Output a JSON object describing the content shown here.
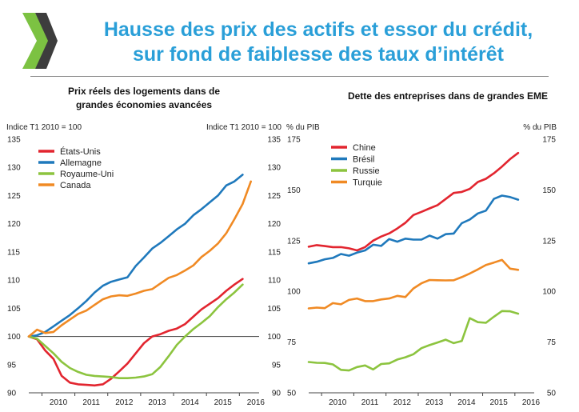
{
  "header": {
    "title_line1": "Hausse des prix des actifs et essor du crédit,",
    "title_line2": "sur fond de faiblesse des taux d’intérêt"
  },
  "colors": {
    "title": "#2a9fd8",
    "logo": "#7cc242",
    "red": "#e2252f",
    "blue": "#1f79bc",
    "green": "#8cc43f",
    "orange": "#f08a24"
  },
  "chart_data": [
    {
      "type": "line",
      "title_line1": "Prix réels des logements dans de",
      "title_line2": "grandes économies avancées",
      "ylabel_left": "Indice T1 2010 = 100",
      "ylabel_right": "Indice T1 2010 = 100",
      "ylim": [
        90,
        135
      ],
      "yticks": [
        90,
        95,
        100,
        105,
        110,
        115,
        120,
        125,
        130,
        135
      ],
      "xlim": [
        2009.6,
        2016.6
      ],
      "xticks": [
        "2010",
        "2011",
        "2012",
        "2013",
        "2014",
        "2015",
        "2016"
      ],
      "reference_line": 100,
      "grid": false,
      "legend_position": "top-left",
      "series": [
        {
          "name": "États-Unis",
          "color": "#e2252f",
          "x": [
            2009.6,
            2009.85,
            2010.1,
            2010.35,
            2010.6,
            2010.85,
            2011.1,
            2011.35,
            2011.6,
            2011.85,
            2012.1,
            2012.35,
            2012.6,
            2012.85,
            2013.1,
            2013.35,
            2013.6,
            2013.85,
            2014.1,
            2014.35,
            2014.6,
            2014.85,
            2015.1,
            2015.35,
            2015.6,
            2015.85,
            2016.1
          ],
          "y": [
            100,
            99.5,
            97.5,
            96,
            93,
            91.8,
            91.5,
            91.4,
            91.3,
            91.5,
            92.5,
            93.8,
            95.2,
            97,
            98.8,
            100,
            100.4,
            101,
            101.4,
            102.2,
            103.5,
            104.8,
            105.8,
            106.8,
            108.1,
            109.2,
            110.2
          ]
        },
        {
          "name": "Allemagne",
          "color": "#1f79bc",
          "x": [
            2009.6,
            2009.85,
            2010.1,
            2010.35,
            2010.6,
            2010.85,
            2011.1,
            2011.35,
            2011.6,
            2011.85,
            2012.1,
            2012.35,
            2012.6,
            2012.85,
            2013.1,
            2013.35,
            2013.6,
            2013.85,
            2014.1,
            2014.35,
            2014.6,
            2014.85,
            2015.1,
            2015.35,
            2015.6,
            2015.85,
            2016.1
          ],
          "y": [
            100,
            100.2,
            100.8,
            101.8,
            102.8,
            103.8,
            105,
            106.3,
            107.8,
            109,
            109.7,
            110.1,
            110.5,
            112.5,
            114,
            115.6,
            116.6,
            117.8,
            119,
            120,
            121.5,
            122.6,
            123.8,
            125,
            126.8,
            127.5,
            128.7
          ]
        },
        {
          "name": "Royaume-Uni",
          "color": "#8cc43f",
          "x": [
            2009.6,
            2009.85,
            2010.1,
            2010.35,
            2010.6,
            2010.85,
            2011.1,
            2011.35,
            2011.6,
            2011.85,
            2012.1,
            2012.35,
            2012.6,
            2012.85,
            2013.1,
            2013.35,
            2013.6,
            2013.85,
            2014.1,
            2014.35,
            2014.6,
            2014.85,
            2015.1,
            2015.35,
            2015.6,
            2015.85,
            2016.1
          ],
          "y": [
            100,
            99.6,
            98.3,
            97,
            95.5,
            94.4,
            93.7,
            93.2,
            93,
            92.9,
            92.8,
            92.6,
            92.6,
            92.7,
            92.9,
            93.3,
            94.6,
            96.5,
            98.5,
            100,
            101.3,
            102.4,
            103.6,
            105.2,
            106.6,
            107.8,
            109.2
          ]
        },
        {
          "name": "Canada",
          "color": "#f08a24",
          "x": [
            2009.6,
            2009.85,
            2010.1,
            2010.35,
            2010.6,
            2010.85,
            2011.1,
            2011.35,
            2011.6,
            2011.85,
            2012.1,
            2012.35,
            2012.6,
            2012.85,
            2013.1,
            2013.35,
            2013.6,
            2013.85,
            2014.1,
            2014.35,
            2014.6,
            2014.85,
            2015.1,
            2015.35,
            2015.6,
            2015.85,
            2016.1,
            2016.35
          ],
          "y": [
            100,
            101.2,
            100.6,
            100.8,
            102,
            103,
            104,
            104.6,
            105.6,
            106.6,
            107.1,
            107.3,
            107.2,
            107.6,
            108.1,
            108.4,
            109.4,
            110.4,
            110.9,
            111.7,
            112.6,
            114.1,
            115.2,
            116.5,
            118.3,
            120.8,
            123.5,
            127.5
          ]
        }
      ]
    },
    {
      "type": "line",
      "title": "Dette des entreprises dans de grandes EME",
      "ylabel_left": "% du PIB",
      "ylabel_right": "% du PIB",
      "ylim": [
        50,
        175
      ],
      "yticks": [
        50,
        75,
        100,
        125,
        150,
        175
      ],
      "xlim": [
        2009.6,
        2016.6
      ],
      "xticks": [
        "2010",
        "2011",
        "2012",
        "2013",
        "2014",
        "2015",
        "2016"
      ],
      "grid": false,
      "legend_position": "top-left",
      "series": [
        {
          "name": "Chine",
          "color": "#e2252f",
          "x": [
            2009.6,
            2009.85,
            2010.1,
            2010.35,
            2010.6,
            2010.85,
            2011.1,
            2011.35,
            2011.6,
            2011.85,
            2012.1,
            2012.35,
            2012.6,
            2012.85,
            2013.1,
            2013.35,
            2013.6,
            2013.85,
            2014.1,
            2014.35,
            2014.6,
            2014.85,
            2015.1,
            2015.35,
            2015.6,
            2015.85,
            2016.1
          ],
          "y": [
            122,
            122.8,
            122.3,
            121.8,
            121.8,
            121.2,
            120.2,
            121.8,
            125,
            127,
            128.6,
            131,
            133.8,
            137.6,
            139.2,
            140.9,
            142.5,
            145.5,
            148.5,
            149,
            150.5,
            153.9,
            155.5,
            158.2,
            161.5,
            165.2,
            168.2
          ]
        },
        {
          "name": "Brésil",
          "color": "#1f79bc",
          "x": [
            2009.6,
            2009.85,
            2010.1,
            2010.35,
            2010.6,
            2010.85,
            2011.1,
            2011.35,
            2011.6,
            2011.85,
            2012.1,
            2012.35,
            2012.6,
            2012.85,
            2013.1,
            2013.35,
            2013.6,
            2013.85,
            2014.1,
            2014.35,
            2014.6,
            2014.85,
            2015.1,
            2015.35,
            2015.6,
            2015.85,
            2016.1
          ],
          "y": [
            113.8,
            114.6,
            115.8,
            116.5,
            118.4,
            117.6,
            119.1,
            120.2,
            123,
            122.4,
            125.8,
            124.5,
            126,
            125.5,
            125.5,
            127.5,
            126,
            128.2,
            128.5,
            133.6,
            135.4,
            138.4,
            139.8,
            145.6,
            147.2,
            146.5,
            145.2
          ]
        },
        {
          "name": "Russie",
          "color": "#8cc43f",
          "x": [
            2009.6,
            2009.85,
            2010.1,
            2010.35,
            2010.6,
            2010.85,
            2011.1,
            2011.35,
            2011.6,
            2011.85,
            2012.1,
            2012.35,
            2012.6,
            2012.85,
            2013.1,
            2013.35,
            2013.6,
            2013.85,
            2014.1,
            2014.35,
            2014.6,
            2014.85,
            2015.1,
            2015.35,
            2015.6,
            2015.85,
            2016.1
          ],
          "y": [
            65.2,
            64.8,
            64.7,
            64,
            61.3,
            61,
            62.7,
            63.5,
            61.5,
            64.2,
            64.5,
            66.4,
            67.5,
            69,
            72,
            73.5,
            74.8,
            76.2,
            74.5,
            75.5,
            86.8,
            84.8,
            84.5,
            87.5,
            90.3,
            90.2,
            89
          ]
        },
        {
          "name": "Turquie",
          "color": "#f08a24",
          "x": [
            2009.6,
            2009.85,
            2010.1,
            2010.35,
            2010.6,
            2010.85,
            2011.1,
            2011.35,
            2011.6,
            2011.85,
            2012.1,
            2012.35,
            2012.6,
            2012.85,
            2013.1,
            2013.35,
            2013.6,
            2013.85,
            2014.1,
            2014.35,
            2014.6,
            2014.85,
            2015.1,
            2015.35,
            2015.6,
            2015.85,
            2016.1
          ],
          "y": [
            91.6,
            92,
            91.7,
            94.2,
            93.6,
            95.8,
            96.5,
            95.2,
            95.2,
            96,
            96.5,
            97.8,
            97.2,
            101.4,
            104,
            105.6,
            105.5,
            105.4,
            105.5,
            107,
            108.8,
            110.8,
            113,
            114.2,
            115.5,
            111.2,
            110.6
          ]
        }
      ]
    }
  ]
}
